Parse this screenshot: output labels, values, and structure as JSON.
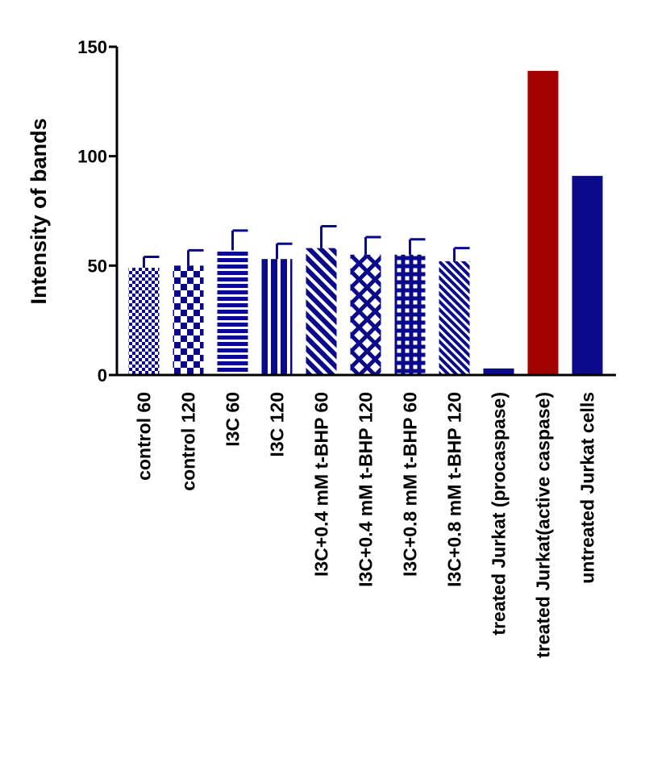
{
  "chart_data": {
    "type": "bar",
    "title": "",
    "xlabel": "",
    "ylabel": "Intensity of bands",
    "ylim": [
      0,
      150
    ],
    "yticks": [
      0,
      50,
      100,
      150
    ],
    "grid": false,
    "legend": "none",
    "categories": [
      "control 60",
      "control 120",
      "I3C 60",
      "I3C 120",
      "I3C+0.4 mM t-BHP 60",
      "I3C+0.4 mM t-BHP 120",
      "I3C+0.8 mM t-BHP 60",
      "I3C+0.8 mM t-BHP 120",
      "treated Jurkat (procaspase)",
      "treated Jurkat(active caspase)",
      "untreated Jurkat cells"
    ],
    "values": [
      49,
      50,
      57,
      53,
      58,
      55,
      55,
      52,
      3,
      139,
      91
    ],
    "errors": [
      5,
      7,
      9,
      7,
      10,
      8,
      7,
      6,
      null,
      null,
      null
    ],
    "patterns": [
      "checker-small",
      "checker-large",
      "horizontal-lines",
      "vertical-lines",
      "diagonal-lines",
      "crosshatch-diagonal",
      "grid",
      "diagonal-dense",
      "solid",
      "solid",
      "solid"
    ],
    "colors": {
      "navy": "#0a0a8a",
      "red": "#a30000",
      "axis": "#000000"
    },
    "bar_colors": [
      "navy",
      "navy",
      "navy",
      "navy",
      "navy",
      "navy",
      "navy",
      "navy",
      "navy",
      "red",
      "navy"
    ]
  }
}
